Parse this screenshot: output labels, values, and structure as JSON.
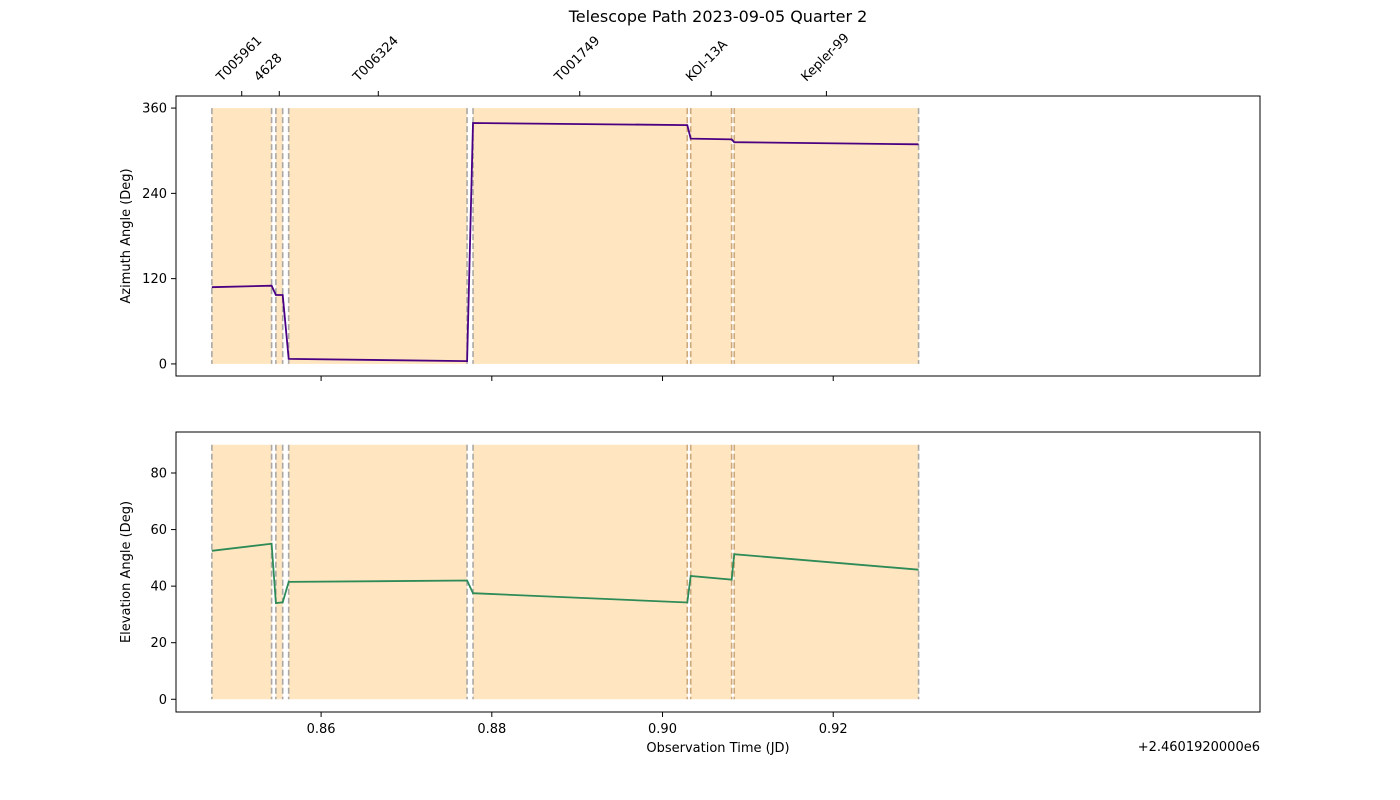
{
  "title": "Telescope Path 2023-09-05 Quarter 2",
  "x_offset_label": "+2.4601920000e6",
  "colors": {
    "azimuth_line": "#4b0082",
    "elevation_line": "#2e8b57",
    "shade": "#ffe6c0",
    "boundary": "#a0a0a0",
    "boundary_overlap": "#c8a070"
  },
  "chart_data": [
    {
      "type": "line",
      "ylabel": "Azimuth Angle (Deg)",
      "xlim": [
        0.843,
        0.97
      ],
      "ylim": [
        -17,
        377
      ],
      "yticks": [
        0,
        120,
        240,
        360
      ],
      "xticks": [
        0.86,
        0.88,
        0.9,
        0.92
      ],
      "xticks_labeled": false,
      "shade_top": 360,
      "series": [
        {
          "x": [
            0.8472,
            0.8542,
            0.8547,
            0.8555,
            0.8562,
            0.8771,
            0.8778,
            0.9029,
            0.9033,
            0.9081,
            0.9084,
            0.93
          ],
          "y": [
            108,
            110,
            97,
            97,
            7,
            4,
            339,
            336,
            317,
            316,
            312,
            309
          ]
        }
      ]
    },
    {
      "type": "line",
      "ylabel": "Elevation Angle (Deg)",
      "xlabel": "Observation Time (JD)",
      "xlim": [
        0.843,
        0.97
      ],
      "ylim": [
        -4.5,
        94.5
      ],
      "yticks": [
        0,
        20,
        40,
        60,
        80
      ],
      "xticks": [
        0.86,
        0.88,
        0.9,
        0.92
      ],
      "xticks_labeled": true,
      "shade_top": 90,
      "series": [
        {
          "x": [
            0.8472,
            0.8542,
            0.8547,
            0.8555,
            0.8562,
            0.8771,
            0.8778,
            0.9029,
            0.9033,
            0.9081,
            0.9084,
            0.93
          ],
          "y": [
            52.5,
            55,
            34,
            34.3,
            41.5,
            42,
            37.5,
            34.2,
            43.6,
            42.3,
            51.3,
            45.8
          ]
        }
      ]
    }
  ],
  "targets": [
    {
      "name": "T005961",
      "label_x": 0.8507
    },
    {
      "name": "4628",
      "label_x": 0.8551
    },
    {
      "name": "T006324",
      "label_x": 0.8667
    },
    {
      "name": "T001749",
      "label_x": 0.8903
    },
    {
      "name": "KOI-13A",
      "label_x": 0.9057
    },
    {
      "name": "Kepler-99",
      "label_x": 0.9192
    }
  ],
  "observation_windows": [
    [
      0.8472,
      0.8542
    ],
    [
      0.8547,
      0.8555
    ],
    [
      0.8562,
      0.8771
    ],
    [
      0.8778,
      0.9029
    ],
    [
      0.9033,
      0.9081
    ],
    [
      0.9084,
      0.93
    ]
  ]
}
